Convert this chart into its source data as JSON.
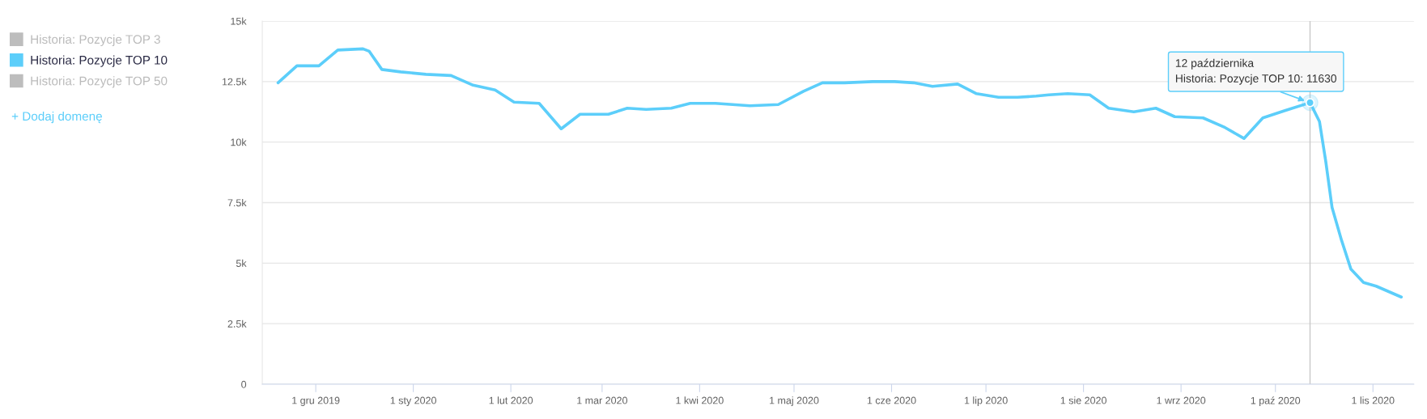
{
  "chart_data": {
    "type": "line",
    "x": [
      "2019-11-19",
      "2019-11-25",
      "2019-12-02",
      "2019-12-08",
      "2019-12-16",
      "2019-12-18",
      "2019-12-22",
      "2019-12-28",
      "2020-01-05",
      "2020-01-13",
      "2020-01-20",
      "2020-01-27",
      "2020-02-02",
      "2020-02-10",
      "2020-02-17",
      "2020-02-23",
      "2020-03-03",
      "2020-03-09",
      "2020-03-15",
      "2020-03-23",
      "2020-03-29",
      "2020-04-06",
      "2020-04-17",
      "2020-04-26",
      "2020-05-04",
      "2020-05-10",
      "2020-05-17",
      "2020-05-26",
      "2020-06-02",
      "2020-06-08",
      "2020-06-14",
      "2020-06-22",
      "2020-06-28",
      "2020-07-05",
      "2020-07-11",
      "2020-07-17",
      "2020-07-21",
      "2020-07-27",
      "2020-08-03",
      "2020-08-09",
      "2020-08-17",
      "2020-08-24",
      "2020-08-30",
      "2020-09-08",
      "2020-09-15",
      "2020-09-21",
      "2020-09-27",
      "2020-10-04",
      "2020-10-12",
      "2020-10-15",
      "2020-10-17",
      "2020-10-19",
      "2020-10-22",
      "2020-10-25",
      "2020-10-29",
      "2020-11-02",
      "2020-11-10"
    ],
    "series": [
      {
        "name": "Historia: Pozycje TOP 3",
        "color": "#bdbdbd",
        "values": [
          null,
          null,
          null,
          null,
          null,
          null,
          null,
          null,
          null,
          null,
          null,
          null,
          null,
          null,
          null,
          null,
          null,
          null,
          null,
          null,
          null,
          null,
          null,
          null,
          null,
          null,
          null,
          null,
          null,
          null,
          null,
          null,
          null,
          null,
          null,
          null,
          null,
          null,
          null,
          null,
          null,
          null,
          null,
          null,
          null,
          null,
          null,
          null,
          null,
          null,
          null,
          null,
          null,
          null,
          null,
          null,
          null
        ]
      },
      {
        "name": "Historia: Pozycje TOP 10",
        "color": "#5ccefa",
        "values": [
          12450,
          13150,
          13150,
          13800,
          13850,
          13750,
          13000,
          12900,
          12800,
          12750,
          12350,
          12150,
          11650,
          11600,
          10550,
          11150,
          11150,
          11400,
          11350,
          11400,
          11600,
          11600,
          11500,
          11550,
          12100,
          12450,
          12450,
          12500,
          12500,
          12450,
          12300,
          12400,
          12000,
          11850,
          11850,
          11900,
          11950,
          12000,
          11950,
          11400,
          11250,
          11400,
          11050,
          11000,
          10600,
          10150,
          11000,
          11300,
          11630,
          10850,
          9200,
          7300,
          5950,
          4750,
          4200,
          4050,
          3600
        ]
      },
      {
        "name": "Historia: Pozycje TOP 50",
        "color": "#bdbdbd",
        "values": [
          null,
          null,
          null,
          null,
          null,
          null,
          null,
          null,
          null,
          null,
          null,
          null,
          null,
          null,
          null,
          null,
          null,
          null,
          null,
          null,
          null,
          null,
          null,
          null,
          null,
          null,
          null,
          null,
          null,
          null,
          null,
          null,
          null,
          null,
          null,
          null,
          null,
          null,
          null,
          null,
          null,
          null,
          null,
          null,
          null,
          null,
          null,
          null,
          null,
          null,
          null,
          null,
          null,
          null,
          null,
          null,
          null
        ]
      }
    ],
    "xlim": [
      "2019-11-14",
      "2020-11-14"
    ],
    "xticks": [
      {
        "value": "2019-12-01",
        "label": "1 gru 2019"
      },
      {
        "value": "2020-01-01",
        "label": "1 sty 2020"
      },
      {
        "value": "2020-02-01",
        "label": "1 lut 2020"
      },
      {
        "value": "2020-03-01",
        "label": "1 mar 2020"
      },
      {
        "value": "2020-04-01",
        "label": "1 kwi 2020"
      },
      {
        "value": "2020-05-01",
        "label": "1 maj 2020"
      },
      {
        "value": "2020-06-01",
        "label": "1 cze 2020"
      },
      {
        "value": "2020-07-01",
        "label": "1 lip 2020"
      },
      {
        "value": "2020-08-01",
        "label": "1 sie 2020"
      },
      {
        "value": "2020-09-01",
        "label": "1 wrz 2020"
      },
      {
        "value": "2020-10-01",
        "label": "1 paź 2020"
      },
      {
        "value": "2020-11-01",
        "label": "1 lis 2020"
      }
    ],
    "ylim": [
      0,
      15000
    ],
    "yticks": [
      0,
      {
        "value": 2500,
        "label": "2.5k"
      },
      {
        "value": 5000,
        "label": "5k"
      },
      {
        "value": 7500,
        "label": "7.5k"
      },
      {
        "value": 10000,
        "label": "10k"
      },
      {
        "value": 12500,
        "label": "12.5k"
      },
      {
        "value": 15000,
        "label": "15k"
      }
    ],
    "grid": "y",
    "legend": "left",
    "ref_lines": [
      {
        "axis": "x",
        "value": "2020-10-12",
        "color": "#c8c8c8"
      }
    ],
    "annotations": [
      "+ Dodaj domenę",
      {
        "text": "12 października\nHistoria: Pozycje TOP 10: 11630",
        "x": "2020-10-12",
        "y": 11630
      }
    ]
  }
}
